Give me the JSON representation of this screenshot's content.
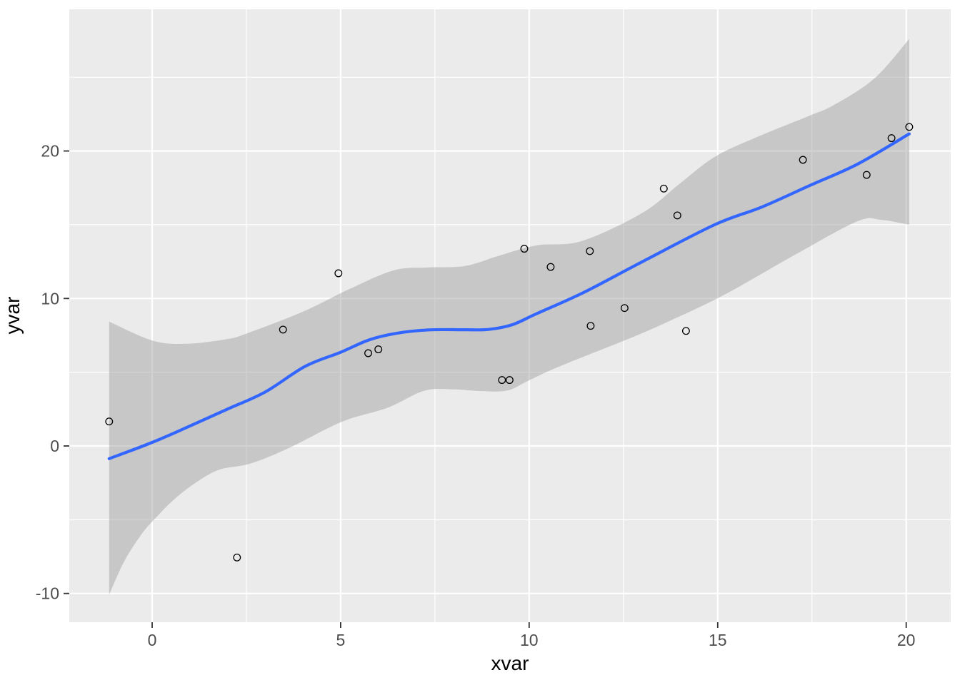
{
  "chart_data": {
    "type": "scatter",
    "title": "",
    "xlabel": "xvar",
    "ylabel": "yvar",
    "axes": {
      "x_major_ticks": [
        0,
        5,
        10,
        15,
        20
      ],
      "x_minor_ticks": [
        2.5,
        7.5,
        12.5,
        17.5
      ],
      "y_major_ticks": [
        -10,
        0,
        10,
        20
      ],
      "y_minor_ticks": [
        -5,
        5,
        15,
        25
      ],
      "xlim": [
        -2.2,
        21.18
      ],
      "ylim": [
        -11.95,
        29.6
      ],
      "grid": "white major/minor on gray panel",
      "legend": "none"
    },
    "points": [
      [
        -1.14,
        1.66
      ],
      [
        2.25,
        -7.56
      ],
      [
        3.47,
        7.89
      ],
      [
        4.94,
        11.71
      ],
      [
        5.73,
        6.29
      ],
      [
        6.0,
        6.55
      ],
      [
        9.28,
        4.47
      ],
      [
        9.48,
        4.47
      ],
      [
        9.87,
        13.37
      ],
      [
        10.57,
        12.14
      ],
      [
        11.61,
        13.21
      ],
      [
        11.63,
        8.14
      ],
      [
        12.53,
        9.35
      ],
      [
        13.57,
        17.45
      ],
      [
        13.93,
        15.63
      ],
      [
        14.16,
        7.8
      ],
      [
        17.26,
        19.4
      ],
      [
        18.95,
        18.38
      ],
      [
        19.61,
        20.87
      ],
      [
        20.08,
        21.63
      ]
    ],
    "smooth_line": [
      [
        -1.14,
        -0.86
      ],
      [
        0,
        0.24
      ],
      [
        1,
        1.35
      ],
      [
        2,
        2.5
      ],
      [
        3,
        3.66
      ],
      [
        4.06,
        5.4
      ],
      [
        5,
        6.35
      ],
      [
        5.76,
        7.2
      ],
      [
        6.5,
        7.65
      ],
      [
        7.34,
        7.87
      ],
      [
        8.3,
        7.88
      ],
      [
        8.92,
        7.9
      ],
      [
        9.55,
        8.22
      ],
      [
        10.18,
        8.95
      ],
      [
        11.44,
        10.4
      ],
      [
        13.02,
        12.52
      ],
      [
        14.92,
        15.0
      ],
      [
        16.18,
        16.21
      ],
      [
        17.44,
        17.66
      ],
      [
        18.71,
        19.11
      ],
      [
        20.08,
        21.16
      ]
    ],
    "ribbon_upper": [
      [
        -1.14,
        8.43
      ],
      [
        0,
        7.15
      ],
      [
        0.9,
        6.93
      ],
      [
        2,
        7.25
      ],
      [
        2.54,
        7.66
      ],
      [
        4,
        9.1
      ],
      [
        5.2,
        10.6
      ],
      [
        6.4,
        11.9
      ],
      [
        7.3,
        12.1
      ],
      [
        8.3,
        12.2
      ],
      [
        9.2,
        12.9
      ],
      [
        10.2,
        13.6
      ],
      [
        11.4,
        13.9
      ],
      [
        13.0,
        15.8
      ],
      [
        14.0,
        17.8
      ],
      [
        14.92,
        19.6
      ],
      [
        16.0,
        20.9
      ],
      [
        17.44,
        22.4
      ],
      [
        18.07,
        23.1
      ],
      [
        19.15,
        24.9
      ],
      [
        20.08,
        27.6
      ]
    ],
    "ribbon_lower": [
      [
        -1.14,
        -10.08
      ],
      [
        -0.74,
        -7.82
      ],
      [
        -0.3,
        -6.05
      ],
      [
        0.05,
        -5.0
      ],
      [
        0.58,
        -3.63
      ],
      [
        1.15,
        -2.5
      ],
      [
        1.78,
        -1.61
      ],
      [
        2.6,
        -1.2
      ],
      [
        3.61,
        -0.16
      ],
      [
        5.03,
        1.64
      ],
      [
        6.24,
        2.59
      ],
      [
        7.21,
        3.74
      ],
      [
        7.97,
        3.84
      ],
      [
        8.73,
        3.72
      ],
      [
        9.42,
        3.76
      ],
      [
        9.99,
        4.44
      ],
      [
        10.81,
        5.4
      ],
      [
        12.71,
        7.34
      ],
      [
        13.72,
        8.47
      ],
      [
        15.17,
        10.24
      ],
      [
        17.06,
        12.98
      ],
      [
        18.71,
        15.24
      ],
      [
        19.34,
        15.33
      ],
      [
        20.08,
        15.0
      ]
    ],
    "colors": {
      "panel_background": "#EBEBEB",
      "gridline": "#FFFFFF",
      "smooth_line": "#3366FF",
      "ribbon_fill": "#999999",
      "ribbon_alpha": 0.44,
      "point_stroke": "#000000",
      "tick_text": "#4D4D4D",
      "axis_title": "#000000",
      "tick_mark": "#333333"
    }
  }
}
